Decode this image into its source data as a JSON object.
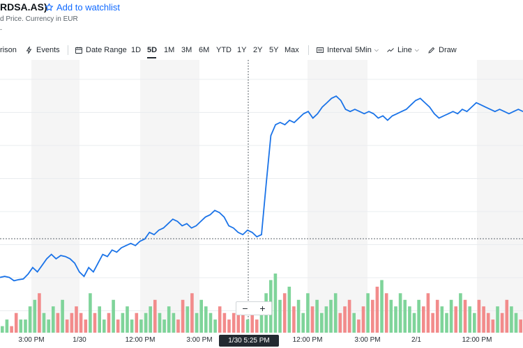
{
  "header": {
    "ticker": "RDSA.AS)",
    "watchlist_label": "Add to watchlist",
    "subline": "d Price. Currency in EUR",
    "dash": "-"
  },
  "toolbar": {
    "comparison_label": "rison",
    "events_label": "Events",
    "date_range_label": "Date Range",
    "ranges": [
      "1D",
      "5D",
      "1M",
      "3M",
      "6M",
      "YTD",
      "1Y",
      "2Y",
      "5Y",
      "Max"
    ],
    "active_range": "5D",
    "interval_label": "Interval",
    "interval_value": "5Min",
    "chart_type_label": "Line",
    "draw_label": "Draw"
  },
  "zoom": {
    "minus": "−",
    "plus": "+"
  },
  "x_axis": {
    "labels": [
      "3:00 PM",
      "1/30",
      "12:00 PM",
      "3:00 PM",
      "12:00 PM",
      "3:00 PM",
      "2/1",
      "12:00 PM"
    ]
  },
  "crosshair": {
    "label": "1/30 5:25 PM"
  },
  "colors": {
    "line": "#1a73e8",
    "vol_up": "#7fd49a",
    "vol_down": "#f28b8b",
    "band": "#f5f5f5",
    "accent": "#0f69ff"
  },
  "chart_data": {
    "type": "line",
    "series": [
      {
        "values": [
          0.555,
          0.56,
          0.555,
          0.54,
          0.545,
          0.548,
          0.57,
          0.6,
          0.58,
          0.61,
          0.64,
          0.66,
          0.64,
          0.655,
          0.65,
          0.64,
          0.62,
          0.58,
          0.56,
          0.6,
          0.58,
          0.62,
          0.66,
          0.65,
          0.68,
          0.67,
          0.69,
          0.7,
          0.71,
          0.7,
          0.72,
          0.73,
          0.76,
          0.75,
          0.77,
          0.78,
          0.8,
          0.82,
          0.81,
          0.79,
          0.8,
          0.78,
          0.79,
          0.81,
          0.83,
          0.84,
          0.86,
          0.85,
          0.83,
          0.79,
          0.78,
          0.76,
          0.75,
          0.77,
          0.76,
          0.74,
          0.75,
          0.98,
          1.2,
          1.25,
          1.26,
          1.25,
          1.27,
          1.26,
          1.28,
          1.3,
          1.31,
          1.28,
          1.3,
          1.33,
          1.35,
          1.37,
          1.38,
          1.36,
          1.32,
          1.31,
          1.32,
          1.31,
          1.3,
          1.31,
          1.3,
          1.28,
          1.29,
          1.27,
          1.29,
          1.3,
          1.31,
          1.32,
          1.34,
          1.36,
          1.37,
          1.35,
          1.33,
          1.3,
          1.28,
          1.29,
          1.3,
          1.31,
          1.3,
          1.32,
          1.31,
          1.33,
          1.35,
          1.34,
          1.33,
          1.32,
          1.31,
          1.32,
          1.31,
          1.3,
          1.31,
          1.32,
          1.31
        ]
      }
    ],
    "volume": [
      1,
      2,
      1,
      3,
      2,
      2,
      4,
      5,
      6,
      3,
      2,
      4,
      3,
      5,
      2,
      3,
      4,
      3,
      2,
      6,
      3,
      4,
      2,
      3,
      5,
      2,
      3,
      4,
      2,
      3,
      2,
      3,
      4,
      5,
      3,
      2,
      4,
      3,
      2,
      5,
      4,
      6,
      3,
      5,
      4,
      3,
      2,
      4,
      3,
      2,
      3,
      4,
      3,
      2,
      3,
      2,
      3,
      6,
      8,
      9,
      5,
      6,
      7,
      4,
      5,
      3,
      6,
      4,
      5,
      3,
      4,
      5,
      6,
      3,
      4,
      5,
      3,
      2,
      4,
      6,
      5,
      7,
      8,
      6,
      5,
      4,
      6,
      5,
      4,
      3,
      5,
      4,
      6,
      3,
      5,
      4,
      3,
      5,
      4,
      6,
      5,
      4,
      3,
      5,
      4,
      3,
      2,
      4,
      3,
      5,
      4,
      3,
      2
    ],
    "xlabel": "",
    "ylabel": "",
    "grid": true
  }
}
